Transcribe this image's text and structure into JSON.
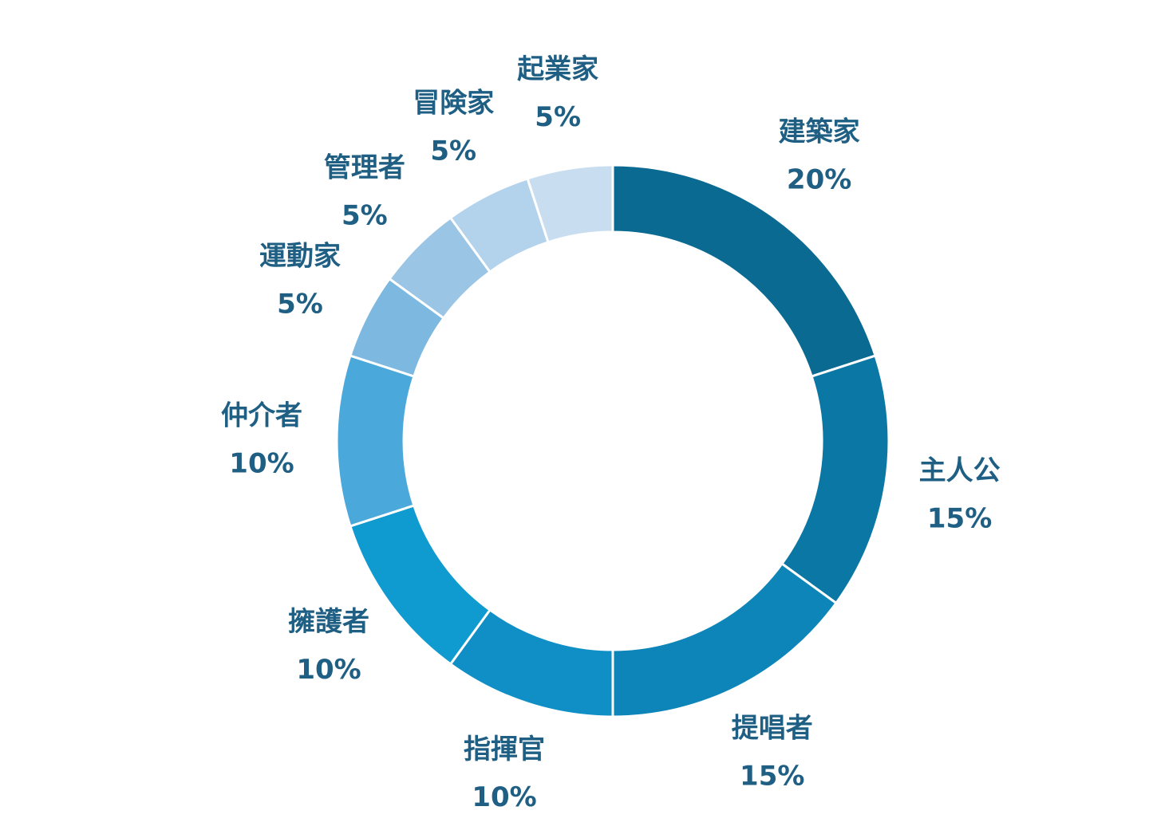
{
  "chart_data": {
    "type": "donut",
    "categories": [
      "建築家",
      "主人公",
      "提唱者",
      "指揮官",
      "擁護者",
      "仲介者",
      "運動家",
      "管理者",
      "冒険家",
      "起業家"
    ],
    "values": [
      20,
      15,
      15,
      10,
      10,
      10,
      5,
      5,
      5,
      5
    ],
    "value_labels": [
      "20%",
      "15%",
      "15%",
      "10%",
      "10%",
      "10%",
      "5%",
      "5%",
      "5%",
      "5%"
    ],
    "colors": [
      "#0a6a91",
      "#0b77a4",
      "#0d85b8",
      "#0f8fc5",
      "#0f9ad0",
      "#4aa8da",
      "#7db8e0",
      "#9bc5e5",
      "#b3d2eb",
      "#c8ddef"
    ]
  }
}
